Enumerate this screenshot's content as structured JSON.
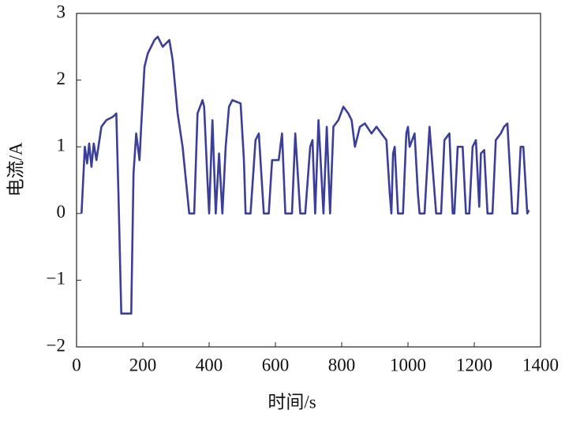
{
  "chart_data": {
    "type": "line",
    "xlabel": "时间/s",
    "ylabel": "电流/A",
    "x": [
      15,
      25,
      32,
      38,
      45,
      52,
      60,
      75,
      90,
      110,
      120,
      127,
      135,
      150,
      165,
      172,
      180,
      190,
      195,
      205,
      215,
      235,
      245,
      260,
      280,
      290,
      305,
      320,
      330,
      340,
      355,
      365,
      380,
      385,
      395,
      400,
      410,
      420,
      430,
      440,
      450,
      460,
      470,
      495,
      505,
      510,
      525,
      540,
      550,
      565,
      580,
      590,
      610,
      620,
      630,
      650,
      660,
      675,
      690,
      705,
      712,
      720,
      730,
      745,
      755,
      765,
      775,
      790,
      805,
      820,
      830,
      840,
      855,
      870,
      890,
      905,
      920,
      935,
      945,
      950,
      955,
      960,
      970,
      985,
      995,
      1000,
      1005,
      1020,
      1030,
      1035,
      1050,
      1065,
      1085,
      1100,
      1110,
      1125,
      1135,
      1140,
      1150,
      1165,
      1172,
      1175,
      1185,
      1195,
      1205,
      1215,
      1220,
      1230,
      1240,
      1255,
      1265,
      1280,
      1290,
      1300,
      1315,
      1330,
      1340,
      1348,
      1360,
      1365
    ],
    "values": [
      0,
      1.0,
      0.75,
      1.05,
      0.7,
      1.05,
      0.8,
      1.3,
      1.4,
      1.45,
      1.5,
      0.2,
      -1.5,
      -1.5,
      -1.5,
      0.6,
      1.2,
      0.8,
      1.3,
      2.2,
      2.4,
      2.6,
      2.65,
      2.5,
      2.6,
      2.3,
      1.5,
      1.0,
      0.5,
      0,
      0,
      1.5,
      1.7,
      1.6,
      0.5,
      0,
      1.4,
      0,
      0.9,
      0,
      1.0,
      1.6,
      1.7,
      1.65,
      0.8,
      0,
      0,
      1.1,
      1.2,
      0,
      0,
      0.8,
      0.8,
      1.2,
      0,
      0,
      1.2,
      0,
      0,
      1.0,
      1.1,
      0,
      1.4,
      0,
      1.3,
      0,
      1.3,
      1.4,
      1.6,
      1.5,
      1.4,
      1.0,
      1.3,
      1.35,
      1.2,
      1.3,
      1.2,
      1.1,
      0.3,
      0,
      0.9,
      1.0,
      0,
      0,
      1.2,
      1.3,
      1.0,
      1.2,
      0.3,
      0,
      0,
      1.3,
      0,
      0,
      1.1,
      1.2,
      0,
      0,
      1.0,
      1.0,
      0.3,
      0,
      0,
      1.0,
      1.1,
      0.1,
      0.9,
      0.95,
      0,
      0,
      1.1,
      1.2,
      1.3,
      1.35,
      0,
      0,
      1.0,
      1.0,
      0,
      0.05
    ],
    "color": "#3b3f99",
    "xlim": [
      0,
      1400
    ],
    "xticks": [
      0,
      200,
      400,
      600,
      800,
      1000,
      1200,
      1400
    ],
    "ylim": [
      -2,
      3
    ],
    "yticks": [
      {
        "value": -2,
        "label": "−2"
      },
      {
        "value": -1,
        "label": "−1"
      },
      0,
      1,
      2,
      3
    ]
  }
}
